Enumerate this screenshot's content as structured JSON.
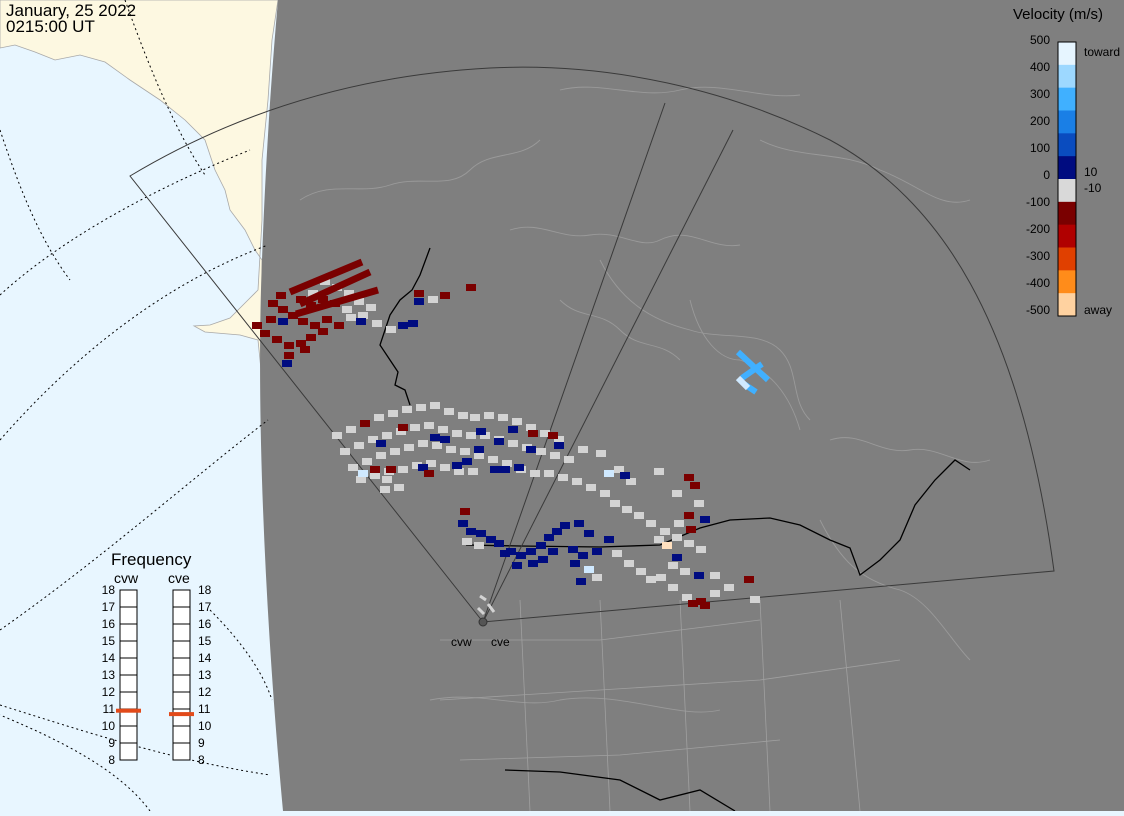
{
  "header": {
    "date": "January, 25 2022",
    "time": "0215:00 UT"
  },
  "velocity_legend": {
    "title": "Velocity (m/s)",
    "ticks": [
      "500",
      "400",
      "300",
      "200",
      "100",
      "10",
      "0",
      "-10",
      "-100",
      "-200",
      "-300",
      "-400",
      "-500"
    ],
    "toward_label": "toward",
    "away_label": "away",
    "colors": [
      "#e6f5ff",
      "#9dd8ff",
      "#40b0ff",
      "#1a7fe6",
      "#0a4cbf",
      "#000c80",
      "#d9d9d9",
      "#7a0000",
      "#b00000",
      "#e04000",
      "#ff8c1a",
      "#ffd2a0"
    ]
  },
  "frequency_panel": {
    "title": "Frequency",
    "radars": [
      {
        "code": "cvw",
        "active_mhz": 10.9
      },
      {
        "code": "cve",
        "active_mhz": 10.7
      }
    ],
    "scale_mhz": [
      "18",
      "17",
      "16",
      "15",
      "14",
      "13",
      "12",
      "11",
      "10",
      "9",
      "8"
    ]
  },
  "radar_sites": [
    "cvw",
    "cve"
  ],
  "map": {
    "ocean_color": "#e8f6ff",
    "nightside_color": "#7f7f7f",
    "land_color": "#fdf8e1",
    "border_color": "#000000",
    "coastline_color": "#9a9a9a",
    "ground_scatter_color": "#d3d3d3"
  }
}
